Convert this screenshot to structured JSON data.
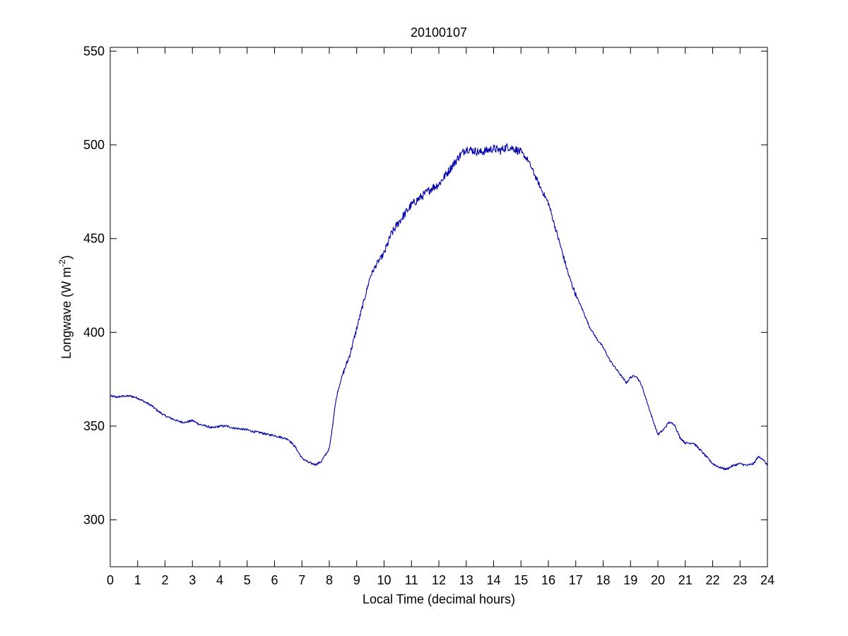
{
  "chart_data": {
    "type": "line",
    "title": "20100107",
    "xlabel": "Local Time (decimal hours)",
    "ylabel": {
      "prefix": "Longwave (W m",
      "superscript": "-2",
      "suffix": ")"
    },
    "xlim": [
      0,
      24
    ],
    "ylim": [
      275,
      552
    ],
    "x_ticks": [
      0,
      1,
      2,
      3,
      4,
      5,
      6,
      7,
      8,
      9,
      10,
      11,
      12,
      13,
      14,
      15,
      16,
      17,
      18,
      19,
      20,
      21,
      22,
      23,
      24
    ],
    "x_tick_labels": [
      "0",
      "1",
      "2",
      "3",
      "4",
      "5",
      "6",
      "7",
      "8",
      "9",
      "10",
      "11",
      "12",
      "13",
      "14",
      "15",
      "16",
      "17",
      "18",
      "19",
      "20",
      "21",
      "22",
      "23",
      "24"
    ],
    "y_ticks": [
      300,
      350,
      400,
      450,
      500,
      550
    ],
    "y_tick_labels": [
      "300",
      "350",
      "400",
      "450",
      "500",
      "550"
    ],
    "grid": false,
    "box": true,
    "colors": {
      "line": "#0000aa",
      "axes": "#000000",
      "background": "#ffffff"
    },
    "series": [
      {
        "x": [
          0,
          0.25,
          0.5,
          0.75,
          1.0,
          1.25,
          1.5,
          1.75,
          2.0,
          2.25,
          2.5,
          2.75,
          3.0,
          3.25,
          3.5,
          3.75,
          4.0,
          4.25,
          4.5,
          4.75,
          5.0,
          5.25,
          5.5,
          5.75,
          6.0,
          6.25,
          6.5,
          6.75,
          7.0,
          7.25,
          7.5,
          7.7,
          8.0,
          8.1,
          8.2,
          8.3,
          8.45,
          8.75,
          9.0,
          9.25,
          9.5,
          9.75,
          10.0,
          10.25,
          10.5,
          10.75,
          11.0,
          11.25,
          11.5,
          11.75,
          12.0,
          12.25,
          12.5,
          12.75,
          13.0,
          13.25,
          13.5,
          13.75,
          14.0,
          14.25,
          14.5,
          14.75,
          15.0,
          15.25,
          15.5,
          15.75,
          16.0,
          16.25,
          16.5,
          16.75,
          17.0,
          17.25,
          17.5,
          17.75,
          18.0,
          18.25,
          18.5,
          18.7,
          18.85,
          19.0,
          19.2,
          19.4,
          19.6,
          19.8,
          20.0,
          20.2,
          20.4,
          20.6,
          20.8,
          21.0,
          21.3,
          21.5,
          21.75,
          22.0,
          22.25,
          22.5,
          22.75,
          23.0,
          23.25,
          23.5,
          23.65,
          23.8,
          24.0
        ],
        "y": [
          366,
          365.5,
          366,
          366,
          365,
          363,
          361,
          358,
          355.5,
          354,
          352.5,
          352,
          353,
          351,
          350,
          349,
          350,
          350,
          349,
          348.5,
          348,
          347,
          346.5,
          345.5,
          345,
          344,
          343,
          339,
          333,
          330.5,
          329.5,
          331,
          338,
          348,
          360,
          368,
          376,
          388,
          402,
          416,
          430,
          437,
          442,
          452,
          458,
          463,
          468,
          471,
          474,
          477,
          479,
          484,
          489,
          494,
          498,
          497,
          496,
          497,
          498,
          497,
          499,
          498,
          496,
          492,
          484,
          476,
          469,
          456,
          443,
          430,
          420,
          412,
          403,
          397,
          392,
          385,
          380,
          376,
          373,
          376,
          377,
          372,
          363,
          354,
          345.5,
          348,
          352,
          351,
          344,
          341,
          341,
          338,
          334,
          330,
          328,
          327,
          329,
          330,
          329,
          330,
          333.5,
          333,
          329
        ]
      }
    ]
  }
}
